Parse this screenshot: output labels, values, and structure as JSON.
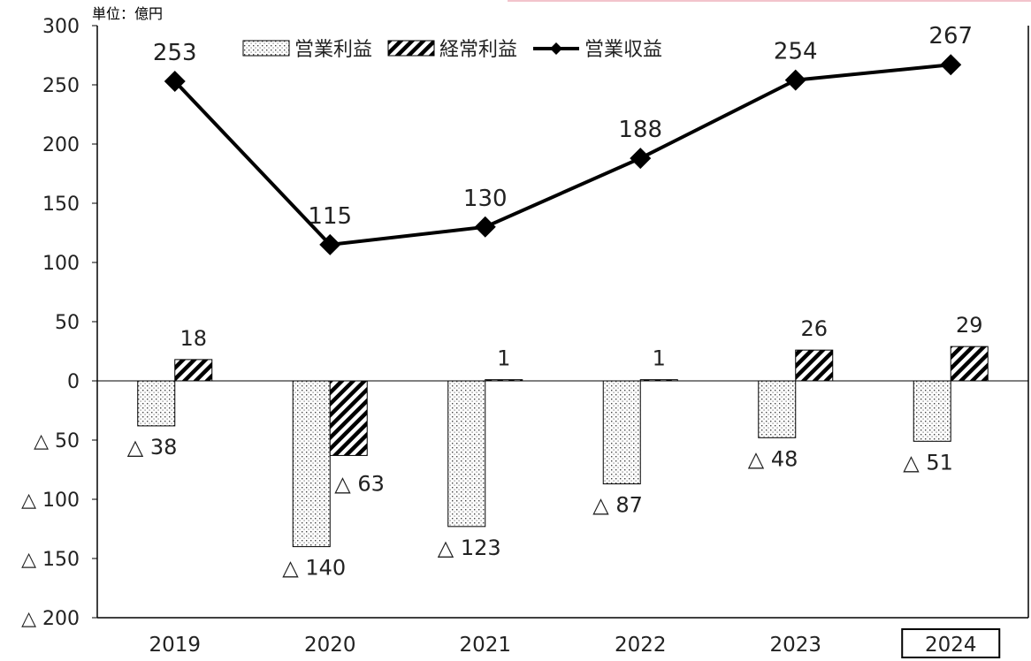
{
  "unit_label": "単位：億円",
  "chart_data": {
    "type": "bar",
    "categories": [
      "2019",
      "2020",
      "2021",
      "2022",
      "2023",
      "2024"
    ],
    "highlighted_category": "2024",
    "ylim": [
      -200,
      300
    ],
    "yticks": [
      300,
      250,
      200,
      150,
      100,
      50,
      0,
      -50,
      -100,
      -150,
      -200
    ],
    "yticks_labels": [
      "300",
      "250",
      "200",
      "150",
      "100",
      "50",
      "0",
      "△ 50",
      "△ 100",
      "△ 150",
      "△ 200"
    ],
    "legend_position": "top",
    "series": [
      {
        "name": "営業利益",
        "kind": "bar",
        "pattern": "dotted",
        "values": [
          -38,
          -140,
          -123,
          -87,
          -48,
          -51
        ],
        "labels": [
          "△ 38",
          "△ 140",
          "△ 123",
          "△ 87",
          "△ 48",
          "△ 51"
        ]
      },
      {
        "name": "経常利益",
        "kind": "bar",
        "pattern": "hatched",
        "values": [
          18,
          -63,
          1,
          1,
          26,
          29
        ],
        "labels": [
          "18",
          "△ 63",
          "1",
          "1",
          "26",
          "29"
        ]
      },
      {
        "name": "営業収益",
        "kind": "line",
        "marker": "diamond",
        "values": [
          253,
          115,
          130,
          188,
          254,
          267
        ],
        "labels": [
          "253",
          "115",
          "130",
          "188",
          "254",
          "267"
        ]
      }
    ]
  }
}
